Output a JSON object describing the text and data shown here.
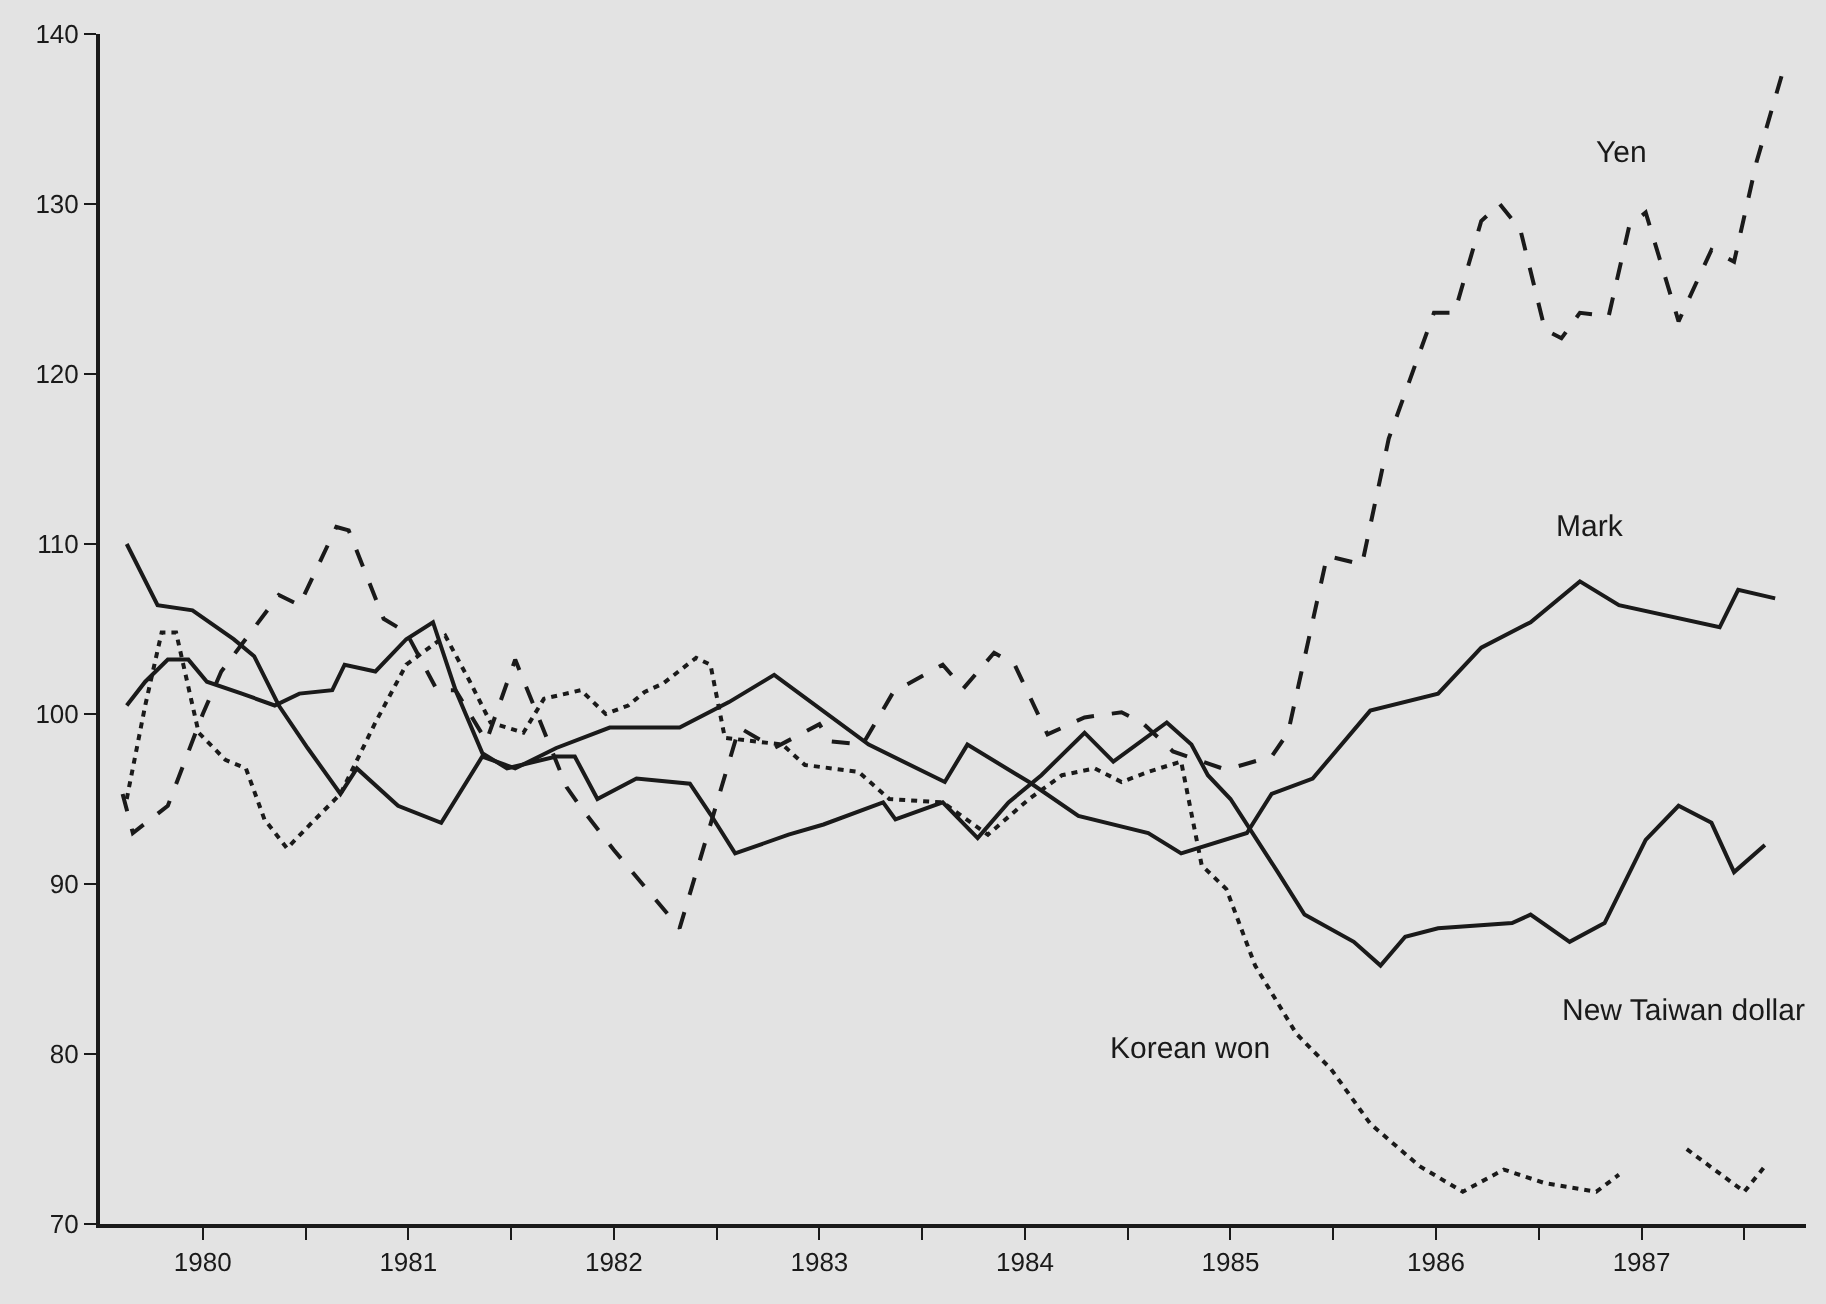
{
  "chart_data": {
    "type": "line",
    "xlim": [
      1980,
      1988.3
    ],
    "ylim": [
      70,
      140
    ],
    "xticks": [
      {
        "value": 1980.5,
        "label": "1980"
      },
      {
        "value": 1981,
        "label": null
      },
      {
        "value": 1981.5,
        "label": "1981"
      },
      {
        "value": 1982,
        "label": null
      },
      {
        "value": 1982.5,
        "label": "1982"
      },
      {
        "value": 1983,
        "label": null
      },
      {
        "value": 1983.5,
        "label": "1983"
      },
      {
        "value": 1984,
        "label": null
      },
      {
        "value": 1984.5,
        "label": "1984"
      },
      {
        "value": 1985,
        "label": null
      },
      {
        "value": 1985.5,
        "label": "1985"
      },
      {
        "value": 1986,
        "label": null
      },
      {
        "value": 1986.5,
        "label": "1986"
      },
      {
        "value": 1987,
        "label": null
      },
      {
        "value": 1987.5,
        "label": "1987"
      },
      {
        "value": 1988,
        "label": null
      }
    ],
    "yticks": [
      70,
      80,
      90,
      100,
      110,
      120,
      130,
      140
    ],
    "grid": false,
    "legend": false,
    "marker": "none",
    "series": [
      {
        "name": "Yen",
        "color": "#1a1a1a",
        "line_style": "dashed",
        "x": [
          1980.11,
          1980.16,
          1980.33,
          1980.5,
          1980.59,
          1980.87,
          1980.97,
          1981.15,
          1981.21,
          1981.38,
          1981.49,
          1981.64,
          1981.73,
          1981.88,
          1982.02,
          1982.27,
          1982.34,
          1982.5,
          1982.82,
          1983.11,
          1983.28,
          1983.5,
          1983.55,
          1983.71,
          1983.86,
          1984.1,
          1984.2,
          1984.35,
          1984.45,
          1984.61,
          1984.79,
          1984.97,
          1985.07,
          1985.22,
          1985.46,
          1985.5,
          1985.7,
          1985.78,
          1985.97,
          1986.14,
          1986.27,
          1986.49,
          1986.59,
          1986.72,
          1986.81,
          1986.91,
          1987.03,
          1987.11,
          1987.2,
          1987.34,
          1987.44,
          1987.52,
          1987.68,
          1987.84,
          1987.95,
          1988.06,
          1988.19
        ],
        "values": [
          95.3,
          93.0,
          94.6,
          100,
          102.5,
          107,
          106.4,
          111,
          110.8,
          105.6,
          104.8,
          101.4,
          101.4,
          98.4,
          103.2,
          95.7,
          94.5,
          92,
          87.4,
          99.2,
          98,
          99.4,
          98.4,
          98.2,
          101.3,
          102.9,
          101.5,
          103.6,
          102.9,
          98.8,
          99.8,
          100.1,
          99.5,
          97.8,
          96.8,
          96.8,
          97.5,
          98.9,
          109.3,
          108.8,
          116.2,
          123.6,
          123.6,
          129,
          130,
          128.5,
          122.6,
          122.1,
          123.6,
          123.4,
          128.7,
          129.5,
          123.1,
          127.3,
          126.6,
          132.5,
          137.9
        ]
      },
      {
        "name": "Mark",
        "color": "#1a1a1a",
        "line_style": "solid",
        "x": [
          1980.13,
          1980.28,
          1980.45,
          1980.65,
          1980.75,
          1980.87,
          1981.01,
          1981.17,
          1981.25,
          1981.45,
          1981.66,
          1981.86,
          1982.02,
          1982.22,
          1982.48,
          1982.82,
          1983.06,
          1983.28,
          1983.74,
          1984.11,
          1984.22,
          1984.52,
          1984.76,
          1985.1,
          1985.26,
          1985.58,
          1985.7,
          1985.9,
          1986.18,
          1986.51,
          1986.72,
          1986.96,
          1987.2,
          1987.39,
          1987.88,
          1987.97,
          1988.15
        ],
        "values": [
          110.0,
          106.4,
          106.1,
          104.4,
          103.4,
          100.5,
          98,
          95.3,
          96.8,
          94.6,
          93.6,
          97.5,
          96.8,
          98,
          99.2,
          99.2,
          100.7,
          102.3,
          98.2,
          96,
          98.2,
          96,
          94,
          93,
          91.8,
          93.0,
          95.3,
          96.2,
          100.2,
          101.2,
          103.9,
          105.4,
          107.8,
          106.4,
          105.1,
          107.3,
          106.8
        ]
      },
      {
        "name": "New Taiwan dollar",
        "color": "#1a1a1a",
        "line_style": "solid",
        "x": [
          1980.13,
          1980.22,
          1980.33,
          1980.43,
          1980.52,
          1980.69,
          1980.85,
          1980.97,
          1981.13,
          1981.19,
          1981.34,
          1981.49,
          1981.62,
          1981.73,
          1981.86,
          1981.98,
          1982.22,
          1982.31,
          1982.42,
          1982.61,
          1982.87,
          1982.97,
          1983.09,
          1983.35,
          1983.52,
          1983.81,
          1983.87,
          1984.1,
          1984.27,
          1984.42,
          1984.58,
          1984.79,
          1984.93,
          1985.19,
          1985.31,
          1985.39,
          1985.5,
          1985.73,
          1985.86,
          1986.1,
          1986.23,
          1986.35,
          1986.51,
          1986.87,
          1986.96,
          1987.15,
          1987.32,
          1987.52,
          1987.68,
          1987.84,
          1987.95,
          1988.1
        ],
        "values": [
          100.5,
          101.9,
          103.2,
          103.2,
          101.9,
          101.2,
          100.5,
          101.2,
          101.4,
          102.9,
          102.5,
          104.4,
          105.4,
          101.4,
          97.7,
          96.8,
          97.5,
          97.5,
          95,
          96.2,
          95.9,
          94.1,
          91.8,
          92.9,
          93.5,
          94.8,
          93.8,
          94.8,
          92.7,
          94.8,
          96.4,
          98.9,
          97.2,
          99.5,
          98.2,
          96.4,
          95,
          90.7,
          88.2,
          86.6,
          85.2,
          86.9,
          87.4,
          87.7,
          88.2,
          86.6,
          87.7,
          92.6,
          94.6,
          93.6,
          90.7,
          92.3
        ]
      },
      {
        "name": "Korean won",
        "color": "#1a1a1a",
        "line_style": "dotted",
        "x": [
          1980.13,
          1980.22,
          1980.3,
          1980.37,
          1980.48,
          1980.61,
          1980.71,
          1980.8,
          1980.91,
          1981.03,
          1981.17,
          1981.34,
          1981.49,
          1981.68,
          1981.8,
          1981.9,
          1982.06,
          1982.16,
          1982.34,
          1982.46,
          1982.57,
          1982.65,
          1982.74,
          1982.9,
          1982.97,
          1983.04,
          1983.32,
          1983.43,
          1983.69,
          1983.84,
          1984.1,
          1984.32,
          1984.52,
          1984.68,
          1984.84,
          1984.97,
          1985.1,
          1985.26,
          1985.36,
          1985.48,
          1985.62,
          1985.82,
          1985.99,
          1986.18,
          1986.42,
          1986.63,
          1986.83,
          1987.03,
          1987.28,
          1987.39,
          null,
          1987.72,
          1988.0,
          1988.1
        ],
        "values": [
          95,
          100.5,
          104.8,
          104.8,
          98.9,
          97.3,
          96.8,
          93.8,
          92.1,
          93.6,
          95.3,
          99.5,
          102.9,
          104.6,
          101.9,
          99.5,
          98.9,
          100.9,
          101.4,
          100,
          100.5,
          101.3,
          101.8,
          103.3,
          102.9,
          98.6,
          98.2,
          97,
          96.6,
          95,
          94.8,
          92.9,
          95,
          96.4,
          96.8,
          96,
          96.6,
          97.2,
          91.1,
          89.7,
          85.2,
          81.2,
          79.1,
          75.9,
          73.4,
          71.9,
          73.2,
          72.4,
          71.9,
          72.9,
          null,
          74.4,
          71.9,
          73.4
        ]
      }
    ]
  }
}
